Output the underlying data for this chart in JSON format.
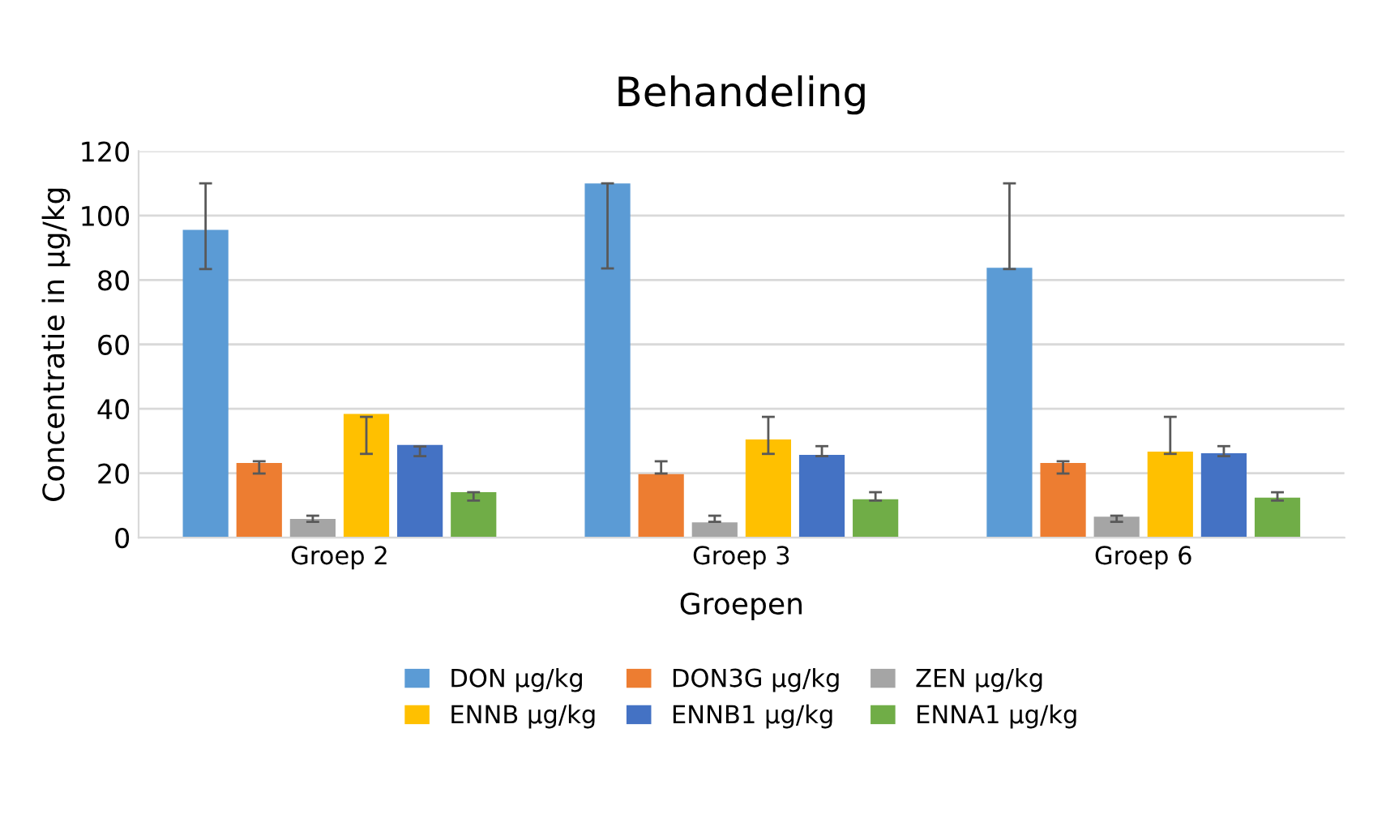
{
  "chart_data": {
    "type": "bar",
    "title": "Behandeling",
    "xlabel": "Groepen",
    "ylabel": "Concentratie in µg/kg",
    "categories": [
      "Groep 2",
      "Groep 3",
      "Groep 6"
    ],
    "series": [
      {
        "name": "DON µg/kg",
        "color": "#5b9bd5",
        "values": [
          95.6,
          110,
          83.8
        ],
        "errors": [
          [
            83.4,
            110
          ],
          [
            83.6,
            110
          ],
          [
            83.4,
            110
          ]
        ]
      },
      {
        "name": "DON3G µg/kg",
        "color": "#ed7d31",
        "values": [
          23.2,
          19.7,
          23.2
        ],
        "errors": [
          [
            19.9,
            23.7
          ],
          [
            19.9,
            23.7
          ],
          [
            19.9,
            23.7
          ]
        ]
      },
      {
        "name": "ZEN µg/kg",
        "color": "#a5a5a5",
        "values": [
          5.8,
          4.7,
          6.5
        ],
        "errors": [
          [
            4.9,
            6.8
          ],
          [
            4.9,
            6.8
          ],
          [
            4.9,
            6.8
          ]
        ]
      },
      {
        "name": "ENNB µg/kg",
        "color": "#ffc000",
        "values": [
          38.4,
          30.5,
          26.7
        ],
        "errors": [
          [
            26,
            37.5
          ],
          [
            26,
            37.5
          ],
          [
            26,
            37.5
          ]
        ]
      },
      {
        "name": "ENNB1 µg/kg",
        "color": "#4472c4",
        "values": [
          28.8,
          25.7,
          26.2
        ],
        "errors": [
          [
            25.3,
            28.3
          ],
          [
            25.3,
            28.4
          ],
          [
            25.3,
            28.4
          ]
        ]
      },
      {
        "name": "ENNA1 µg/kg",
        "color": "#70ad47",
        "values": [
          14.1,
          11.9,
          12.4
        ],
        "errors": [
          [
            11.5,
            14.1
          ],
          [
            11.5,
            14.1
          ],
          [
            11.5,
            14.1
          ]
        ]
      }
    ],
    "ylim": [
      0,
      120
    ],
    "yticks": [
      0,
      20,
      40,
      60,
      80,
      100,
      120
    ],
    "grid": "y",
    "legend": "bottom"
  }
}
